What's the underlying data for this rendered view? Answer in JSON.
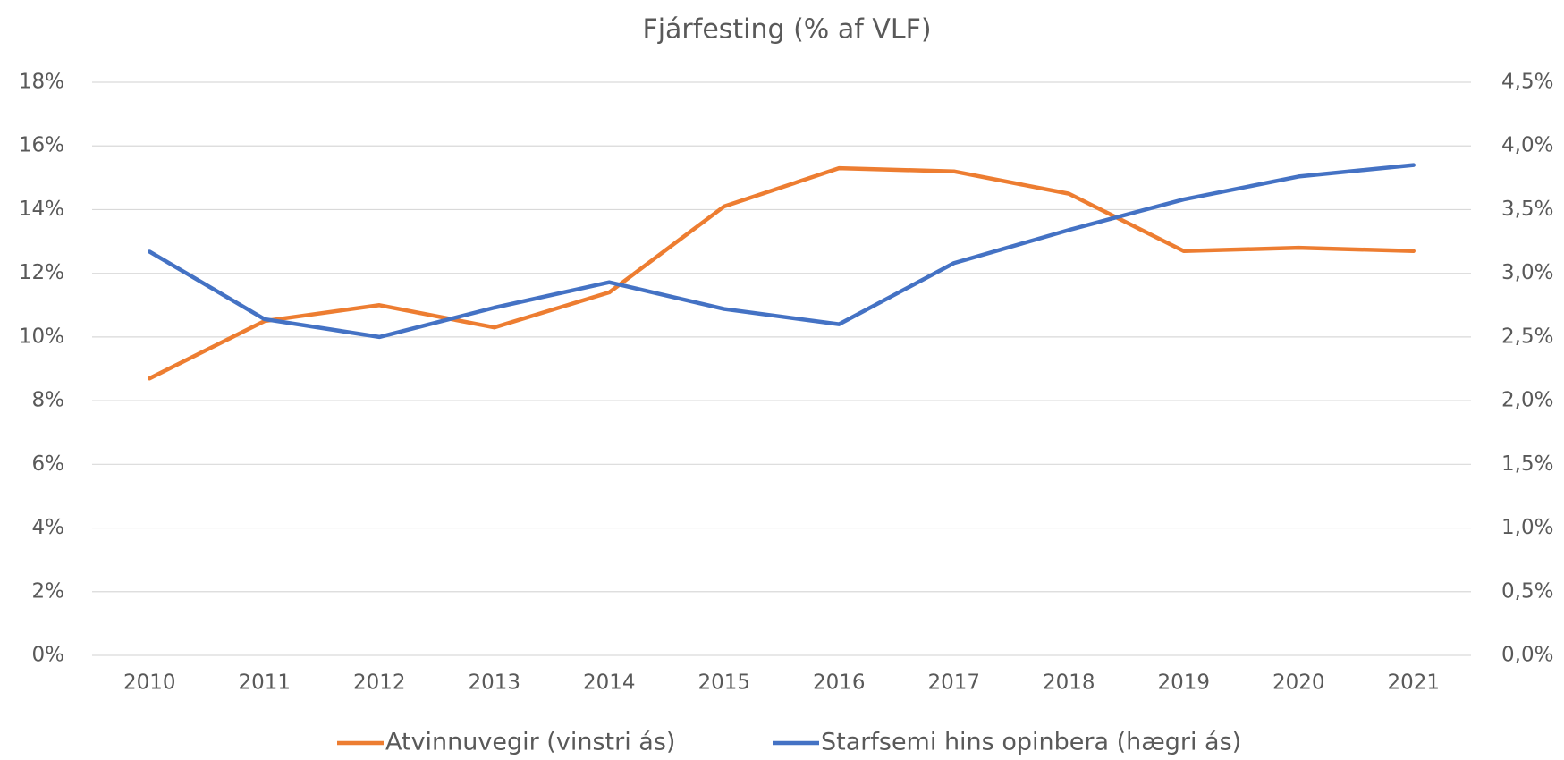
{
  "chart_data": {
    "type": "line",
    "title": "Fjárfesting (% af VLF)",
    "x": [
      2010,
      2011,
      2012,
      2013,
      2014,
      2015,
      2016,
      2017,
      2018,
      2019,
      2020,
      2021
    ],
    "series": [
      {
        "name": "Atvinnuvegir (vinstri ás)",
        "color": "#ed7d31",
        "values": [
          8.7,
          10.5,
          11.0,
          10.3,
          11.4,
          14.1,
          15.3,
          15.2,
          14.5,
          12.7,
          12.8,
          12.7
        ]
      },
      {
        "name": "Starfsemi hins opinbera (hægri ás)",
        "color": "#4472c4",
        "axis": "y2",
        "values": [
          3.17,
          2.64,
          2.5,
          2.73,
          2.93,
          2.72,
          2.6,
          3.08,
          3.34,
          3.58,
          3.76,
          3.85
        ]
      }
    ],
    "ylim": [
      0,
      18
    ],
    "yticks": [
      {
        "value": 0,
        "label": "0%"
      },
      {
        "value": 2,
        "label": "2%"
      },
      {
        "value": 4,
        "label": "4%"
      },
      {
        "value": 6,
        "label": "6%"
      },
      {
        "value": 8,
        "label": "8%"
      },
      {
        "value": 10,
        "label": "10%"
      },
      {
        "value": 12,
        "label": "12%"
      },
      {
        "value": 14,
        "label": "14%"
      },
      {
        "value": 16,
        "label": "16%"
      },
      {
        "value": 18,
        "label": "18%"
      }
    ],
    "y2lim": [
      0,
      4.5
    ],
    "y2ticks": [
      {
        "value": 0,
        "label": "0,0%"
      },
      {
        "value": 0.5,
        "label": "0,5%"
      },
      {
        "value": 1,
        "label": "1,0%"
      },
      {
        "value": 1.5,
        "label": "1,5%"
      },
      {
        "value": 2,
        "label": "2,0%"
      },
      {
        "value": 2.5,
        "label": "2,5%"
      },
      {
        "value": 3,
        "label": "3,0%"
      },
      {
        "value": 3.5,
        "label": "3,5%"
      },
      {
        "value": 4,
        "label": "4,0%"
      },
      {
        "value": 4.5,
        "label": "4,5%"
      }
    ],
    "grid": true,
    "legend": "bottom"
  }
}
